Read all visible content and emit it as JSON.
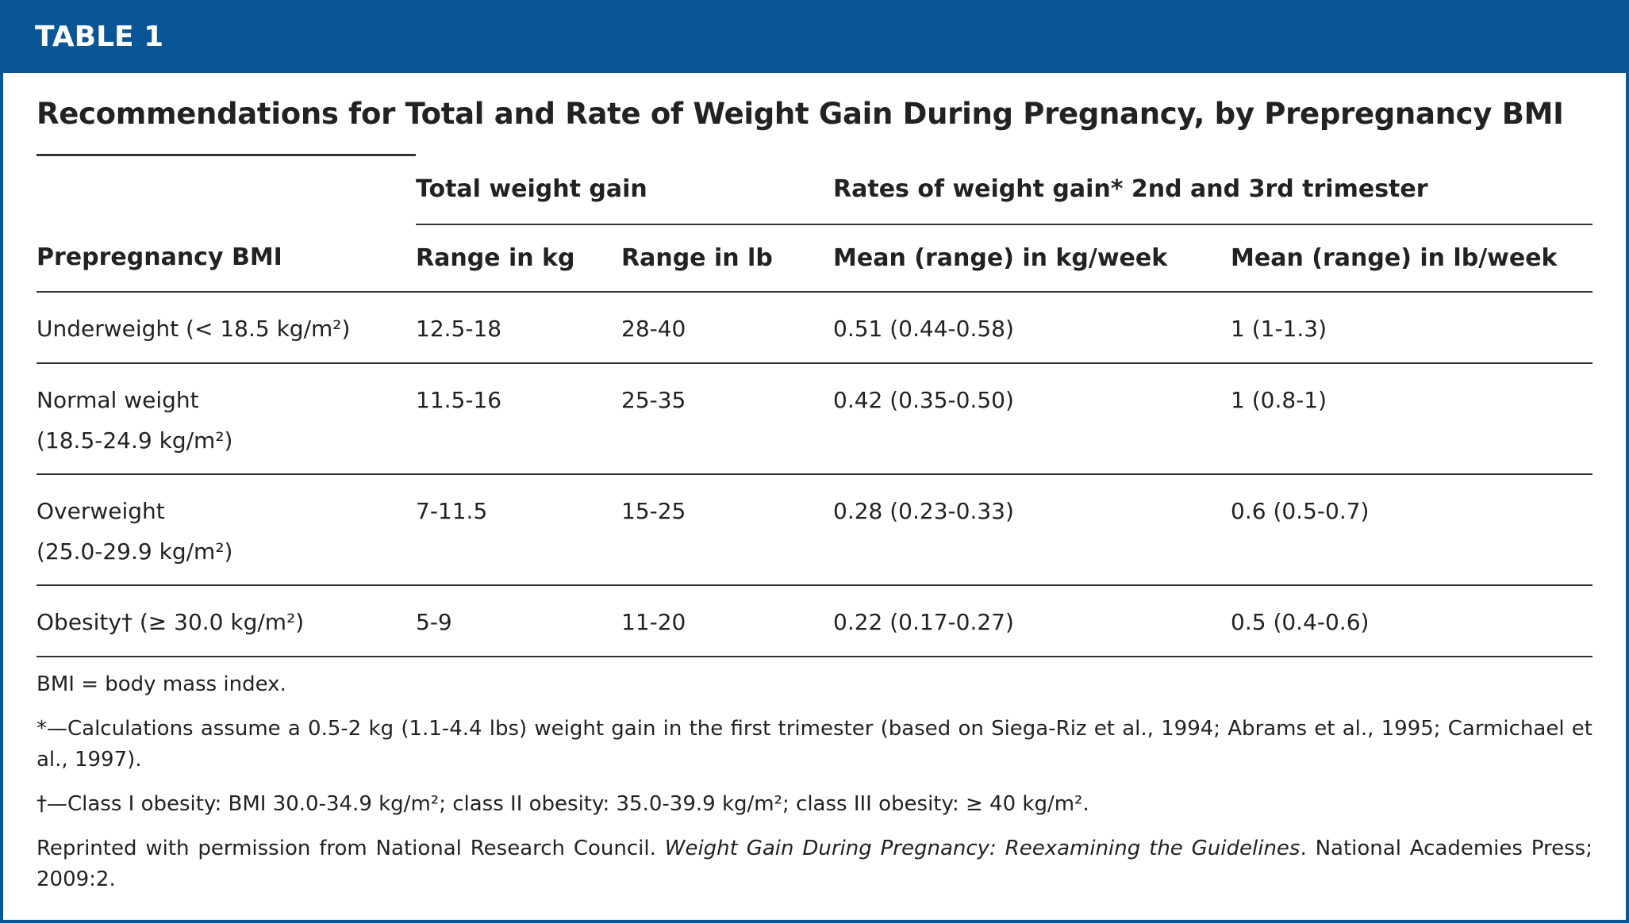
{
  "header": {
    "label": "TABLE 1"
  },
  "title": "Recommendations for Total and Rate of Weight Gain During Pregnancy, by Prepregnancy BMI",
  "table": {
    "group_headers": [
      "Total weight gain",
      "Rates of weight gain* 2nd and 3rd trimester"
    ],
    "columns": [
      "Prepregnancy BMI",
      "Range in kg",
      "Range in lb",
      "Mean (range) in kg/week",
      "Mean (range) in lb/week"
    ],
    "rows": [
      {
        "bmi": [
          "Underweight (< 18.5 kg/m²)"
        ],
        "cells": [
          "12.5-18",
          "28-40",
          "0.51 (0.44-0.58)",
          "1 (1-1.3)"
        ]
      },
      {
        "bmi": [
          "Normal weight",
          "(18.5-24.9 kg/m²)"
        ],
        "cells": [
          "11.5-16",
          "25-35",
          "0.42 (0.35-0.50)",
          "1 (0.8-1)"
        ]
      },
      {
        "bmi": [
          "Overweight",
          "(25.0-29.9 kg/m²)"
        ],
        "cells": [
          "7-11.5",
          "15-25",
          "0.28 (0.23-0.33)",
          "0.6 (0.5-0.7)"
        ]
      },
      {
        "bmi": [
          "Obesity† (≥ 30.0 kg/m²)"
        ],
        "cells": [
          "5-9",
          "11-20",
          "0.22 (0.17-0.27)",
          "0.5 (0.4-0.6)"
        ]
      }
    ]
  },
  "notes": [
    "BMI = body mass index.",
    "*—Calculations assume a 0.5-2 kg (1.1-4.4 lbs) weight gain in the first trimester (based on Siega-Riz et al., 1994; Abrams et al., 1995; Carmichael et al., 1997).",
    "†—Class I obesity: BMI 30.0-34.9 kg/m²; class II obesity: 35.0-39.9 kg/m²; class III obesity: ≥ 40 kg/m²."
  ],
  "source": {
    "before": "Reprinted with permission from National Research Council. ",
    "italic": "Weight Gain During Pregnancy: Reexamining the Guidelines",
    "after": ". National Academies Press; 2009:2."
  }
}
